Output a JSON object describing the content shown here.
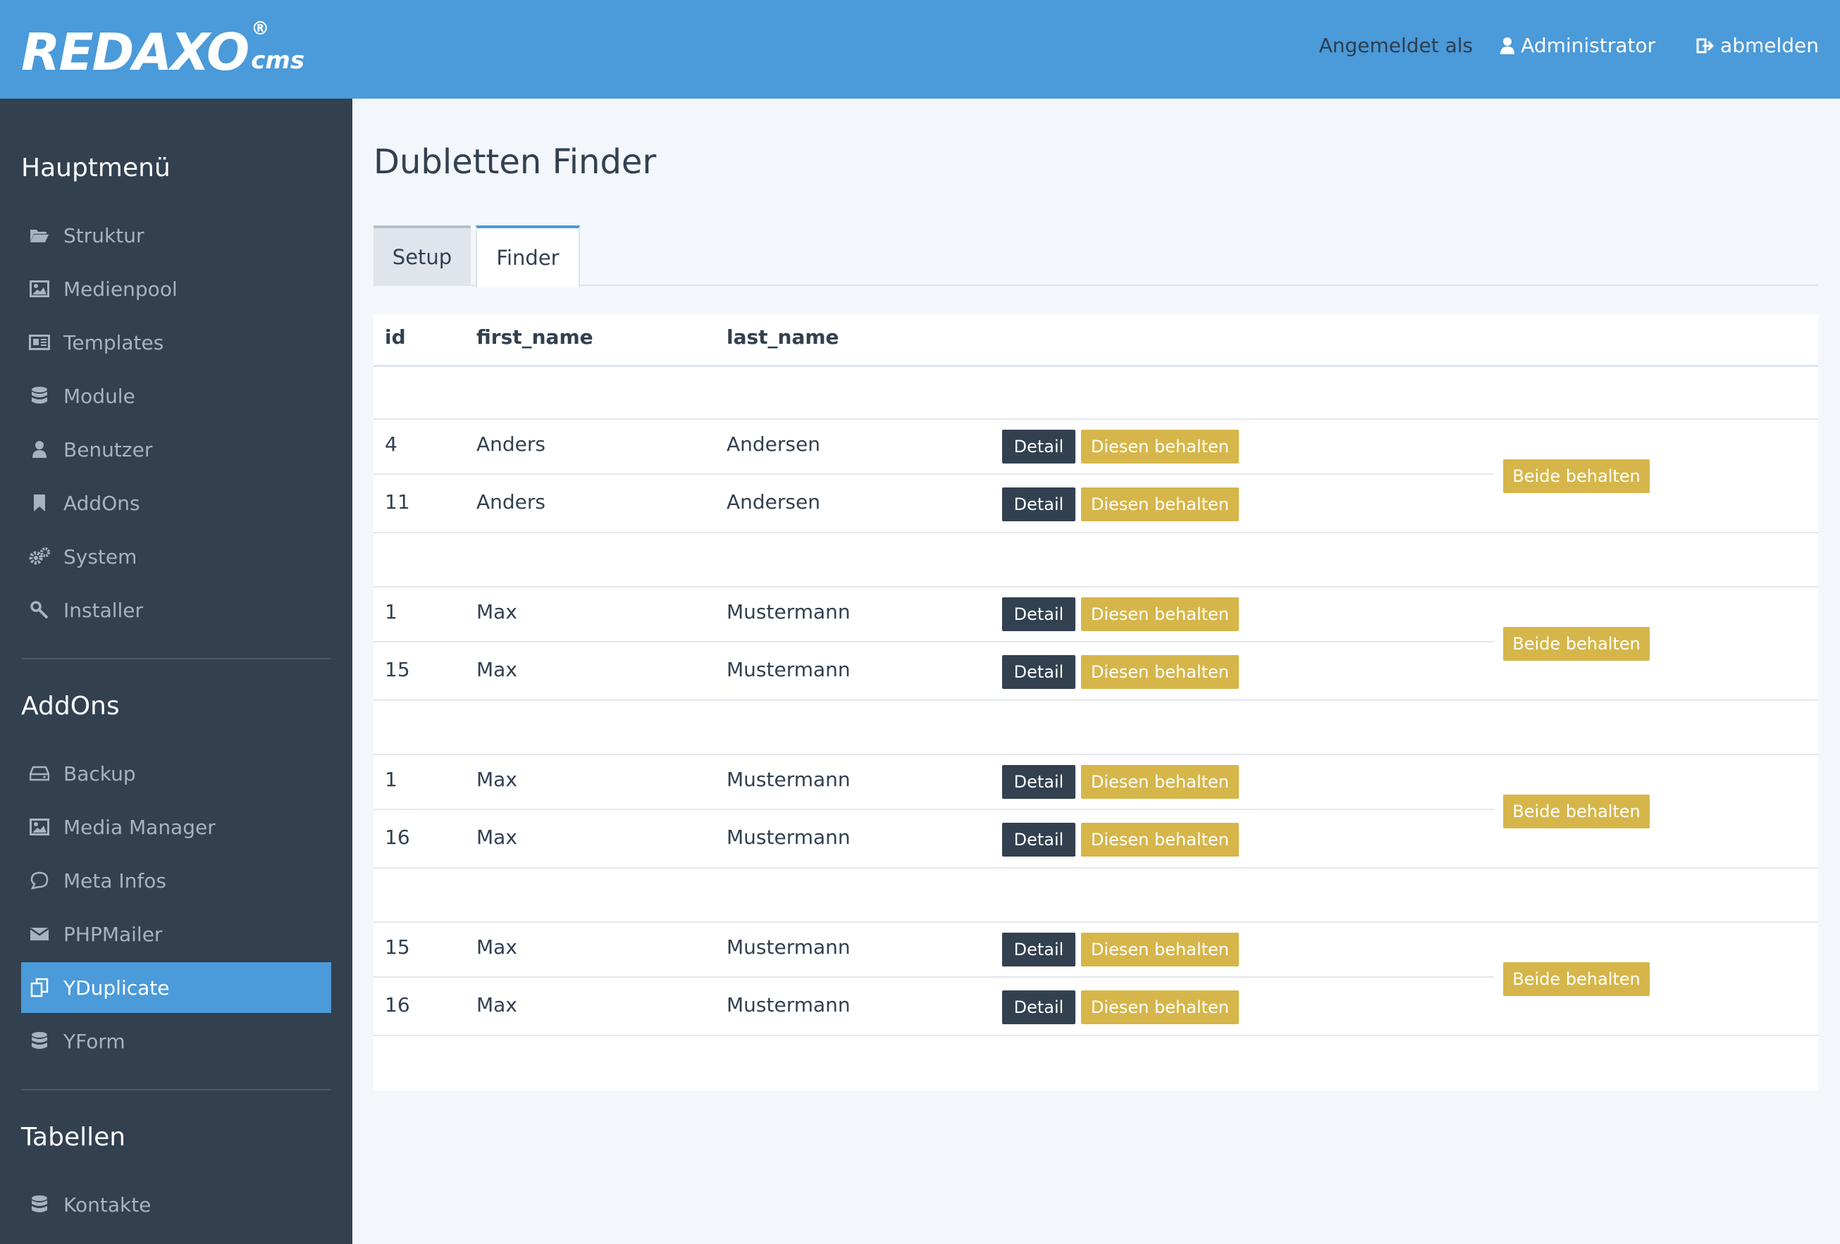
{
  "header": {
    "logo_text": "REDAXO",
    "logo_reg": "®",
    "logo_cms": "cms",
    "logged_in_label": "Angemeldet als",
    "user_name": "Administrator",
    "logout_label": "abmelden"
  },
  "sidebar": {
    "main_heading": "Hauptmenü",
    "main_items": [
      {
        "label": "Struktur",
        "icon": "folder-open-icon"
      },
      {
        "label": "Medienpool",
        "icon": "image-icon"
      },
      {
        "label": "Templates",
        "icon": "newspaper-icon"
      },
      {
        "label": "Module",
        "icon": "database-icon"
      },
      {
        "label": "Benutzer",
        "icon": "user-icon"
      },
      {
        "label": "AddOns",
        "icon": "bookmark-icon"
      },
      {
        "label": "System",
        "icon": "gears-icon"
      },
      {
        "label": "Installer",
        "icon": "wrench-icon"
      }
    ],
    "addons_heading": "AddOns",
    "addon_items": [
      {
        "label": "Backup",
        "icon": "hdd-icon"
      },
      {
        "label": "Media Manager",
        "icon": "image-icon"
      },
      {
        "label": "Meta Infos",
        "icon": "comment-icon"
      },
      {
        "label": "PHPMailer",
        "icon": "envelope-icon"
      },
      {
        "label": "YDuplicate",
        "icon": "copy-icon",
        "active": true
      },
      {
        "label": "YForm",
        "icon": "database-icon"
      }
    ],
    "tables_heading": "Tabellen",
    "table_items": [
      {
        "label": "Kontakte",
        "icon": "database-icon"
      }
    ]
  },
  "main": {
    "title": "Dubletten Finder",
    "tabs": [
      {
        "label": "Setup",
        "active": false
      },
      {
        "label": "Finder",
        "active": true
      }
    ],
    "table": {
      "columns": [
        "id",
        "first_name",
        "last_name"
      ],
      "detail_label": "Detail",
      "keep_label": "Diesen behalten",
      "keep_both_label": "Beide behalten",
      "groups": [
        {
          "rows": [
            {
              "id": "4",
              "first_name": "Anders",
              "last_name": "Andersen"
            },
            {
              "id": "11",
              "first_name": "Anders",
              "last_name": "Andersen"
            }
          ]
        },
        {
          "rows": [
            {
              "id": "1",
              "first_name": "Max",
              "last_name": "Mustermann"
            },
            {
              "id": "15",
              "first_name": "Max",
              "last_name": "Mustermann"
            }
          ]
        },
        {
          "rows": [
            {
              "id": "1",
              "first_name": "Max",
              "last_name": "Mustermann"
            },
            {
              "id": "16",
              "first_name": "Max",
              "last_name": "Mustermann"
            }
          ]
        },
        {
          "rows": [
            {
              "id": "15",
              "first_name": "Max",
              "last_name": "Mustermann"
            },
            {
              "id": "16",
              "first_name": "Max",
              "last_name": "Mustermann"
            }
          ]
        }
      ]
    }
  },
  "colors": {
    "header_bg": "#4b9ad9",
    "sidebar_bg": "#324050",
    "active_item": "#4b9ad9",
    "detail_button": "#324050",
    "keep_button": "#d6b64a"
  }
}
